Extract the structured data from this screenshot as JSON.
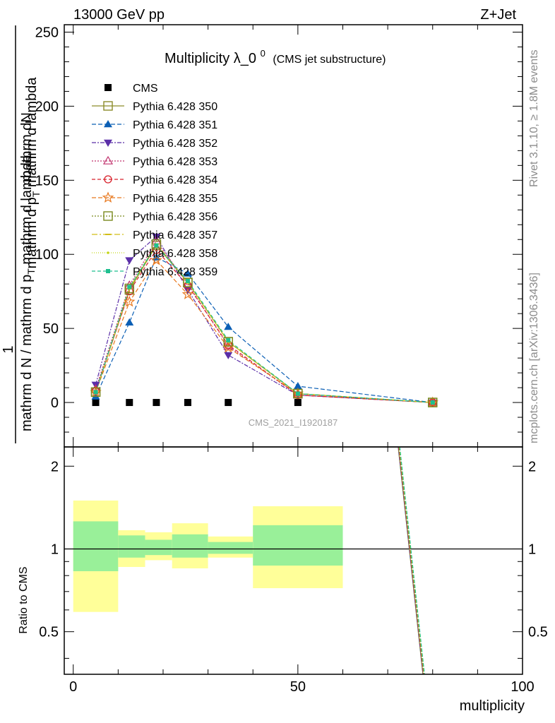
{
  "header": {
    "left": "13000 GeV pp",
    "right": "Z+Jet"
  },
  "side_notes": {
    "rivet": "Rivet 3.1.10, ≥ 1.8M events",
    "mcplots": "mcplots.cern.ch [arXiv:1306.3436]"
  },
  "watermark": "CMS_2021_I1920187",
  "chart_data": [
    {
      "type": "line",
      "title_main": "Multiplicity λ_0",
      "title_sup": "0",
      "title_sub": "(CMS jet substructure)",
      "ylabel_numerator": "mathrm dN",
      "ylabel_subnum": "mathrm d p_{T} mathrm d lambda",
      "ylabel_subnum_main": "mathrm d p",
      "ylabel_subnum_sub": "T",
      "ylabel_subnum_rest": " mathrm d lambda",
      "ylabel_one": "1",
      "ylabel_denominator": "mathrm d N / mathrm d p_{T} mathrm d lambda",
      "ylabel_den_main": "mathrm d N / mathrm d p",
      "ylabel_den_sub": "T",
      "ylabel_den_rest": " mathrm d lambda",
      "xlim": [
        -2,
        100
      ],
      "ylim": [
        -30,
        255
      ],
      "yticks": [
        0,
        50,
        100,
        150,
        200,
        250
      ],
      "ytick_labels": [
        "0",
        "50",
        "100",
        "150",
        "200",
        "250"
      ],
      "x": [
        5,
        12.5,
        18.5,
        25.5,
        34.5,
        50,
        80
      ],
      "series": [
        {
          "name": "CMS",
          "color": "#000000",
          "marker": "square-filled",
          "dash": "none",
          "values": [
            0,
            0,
            0,
            0,
            0,
            0,
            null
          ]
        },
        {
          "name": "Pythia 6.428 350",
          "color": "#8c8c2a",
          "marker": "square-open",
          "dash": "solid",
          "values": [
            7,
            76,
            106,
            81,
            41,
            6,
            0
          ]
        },
        {
          "name": "Pythia 6.428 351",
          "color": "#0b5fb5",
          "marker": "triangle-up-filled",
          "dash": "6,3",
          "values": [
            4,
            54,
            98,
            87,
            51,
            11,
            0
          ]
        },
        {
          "name": "Pythia 6.428 352",
          "color": "#5b2fa8",
          "marker": "triangle-down-filled",
          "dash": "6,2,2,2",
          "values": [
            12,
            96,
            112,
            76,
            32,
            5,
            0
          ]
        },
        {
          "name": "Pythia 6.428 353",
          "color": "#c0306c",
          "marker": "triangle-up-open",
          "dash": "2,2",
          "values": [
            9,
            79,
            109,
            80,
            38,
            5,
            0
          ]
        },
        {
          "name": "Pythia 6.428 354",
          "color": "#d8202a",
          "marker": "circle-open",
          "dash": "5,3",
          "values": [
            8,
            75,
            103,
            79,
            39,
            5,
            0
          ]
        },
        {
          "name": "Pythia 6.428 355",
          "color": "#e8781e",
          "marker": "star-open",
          "dash": "6,3",
          "values": [
            7,
            68,
            96,
            73,
            37,
            6,
            0
          ]
        },
        {
          "name": "Pythia 6.428 356",
          "color": "#7a8a1e",
          "marker": "square-open",
          "dash": "2,2",
          "values": [
            7,
            77,
            107,
            81,
            41,
            6,
            0
          ]
        },
        {
          "name": "Pythia 6.428 357",
          "color": "#d2bd16",
          "marker": "dash",
          "dash": "8,3,2,3",
          "values": [
            7,
            77,
            107,
            81,
            41,
            6,
            0
          ]
        },
        {
          "name": "Pythia 6.428 358",
          "color": "#c4d61a",
          "marker": "dot",
          "dash": "1,2",
          "values": [
            7,
            77,
            106,
            81,
            41,
            6,
            0
          ]
        },
        {
          "name": "Pythia 6.428 359",
          "color": "#1fbf8f",
          "marker": "square-small-filled",
          "dash": "5,3",
          "values": [
            7,
            78,
            106,
            82,
            42,
            6,
            0
          ]
        }
      ]
    },
    {
      "type": "line",
      "ylabel": "Ratio to CMS",
      "xlabel": "multiplicity",
      "xlim": [
        -2,
        100
      ],
      "ylim": [
        0.35,
        2.35
      ],
      "yscale": "log",
      "yticks": [
        0.5,
        1,
        2
      ],
      "ytick_labels": [
        "0.5",
        "1",
        "2"
      ],
      "xticks": [
        0,
        50,
        100
      ],
      "xtick_labels": [
        "0",
        "50",
        "100"
      ],
      "bands": [
        {
          "x0": 0,
          "x1": 10,
          "yellow": [
            0.59,
            1.5
          ],
          "green": [
            0.83,
            1.26
          ]
        },
        {
          "x0": 10,
          "x1": 16,
          "yellow": [
            0.86,
            1.17
          ],
          "green": [
            0.93,
            1.12
          ]
        },
        {
          "x0": 16,
          "x1": 22,
          "yellow": [
            0.91,
            1.15
          ],
          "green": [
            0.95,
            1.08
          ]
        },
        {
          "x0": 22,
          "x1": 30,
          "yellow": [
            0.85,
            1.24
          ],
          "green": [
            0.93,
            1.13
          ]
        },
        {
          "x0": 30,
          "x1": 40,
          "yellow": [
            0.93,
            1.11
          ],
          "green": [
            0.96,
            1.06
          ]
        },
        {
          "x0": 40,
          "x1": 60,
          "yellow": [
            0.72,
            1.43
          ],
          "green": [
            0.87,
            1.22
          ]
        }
      ],
      "ratio_lines": {
        "x_top": 72.5,
        "x_bottom": 78,
        "colors": [
          "#8c8c2a",
          "#0b5fb5",
          "#5b2fa8",
          "#c0306c",
          "#d8202a",
          "#e8781e",
          "#7a8a1e",
          "#d2bd16",
          "#c4d61a",
          "#1fbf8f"
        ]
      }
    }
  ]
}
